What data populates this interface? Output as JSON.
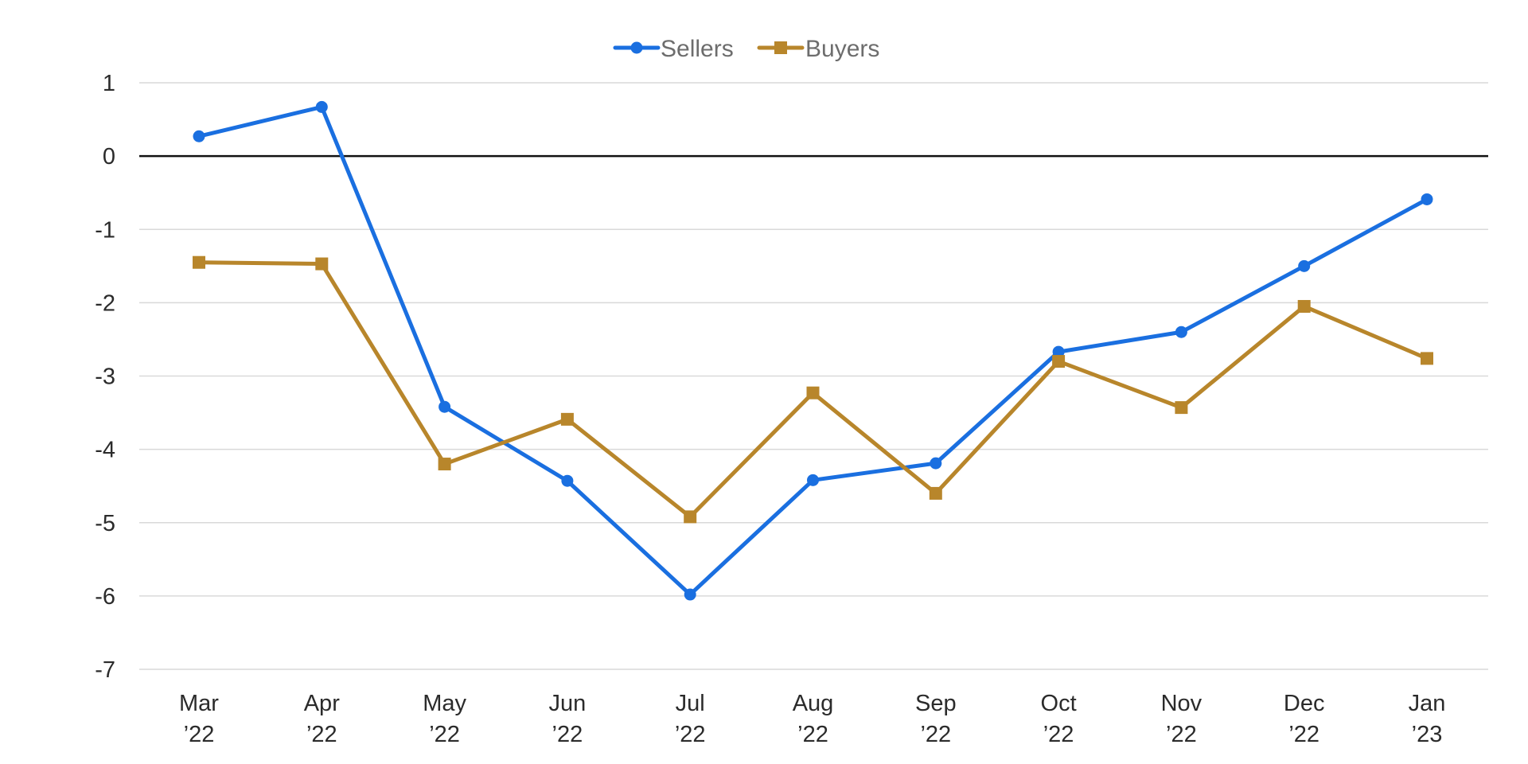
{
  "chart_data": {
    "type": "line",
    "categories": [
      [
        "Mar",
        "’22"
      ],
      [
        "Apr",
        "’22"
      ],
      [
        "May",
        "’22"
      ],
      [
        "Jun",
        "’22"
      ],
      [
        "Jul",
        "’22"
      ],
      [
        "Aug",
        "’22"
      ],
      [
        "Sep",
        "’22"
      ],
      [
        "Oct",
        "’22"
      ],
      [
        "Nov",
        "’22"
      ],
      [
        "Dec",
        "’22"
      ],
      [
        "Jan",
        "’23"
      ]
    ],
    "series": [
      {
        "name": "Sellers",
        "color": "#1a6fe0",
        "marker": "circle",
        "values": [
          0.27,
          0.67,
          -3.42,
          -4.43,
          -5.98,
          -4.42,
          -4.19,
          -2.67,
          -2.4,
          -1.5,
          -0.59
        ]
      },
      {
        "name": "Buyers",
        "color": "#b8862b",
        "marker": "square",
        "values": [
          -1.45,
          -1.47,
          -4.2,
          -3.59,
          -4.92,
          -3.23,
          -4.6,
          -2.8,
          -3.43,
          -2.05,
          -2.76
        ]
      }
    ],
    "yticks": [
      "1",
      "0",
      "-1",
      "-2",
      "-3",
      "-4",
      "-5",
      "-6",
      "-7"
    ],
    "ylim": [
      -7,
      1
    ],
    "grid": true,
    "zero_line": true,
    "legend_position": "top-center",
    "title": "",
    "xlabel": "",
    "ylabel": ""
  }
}
